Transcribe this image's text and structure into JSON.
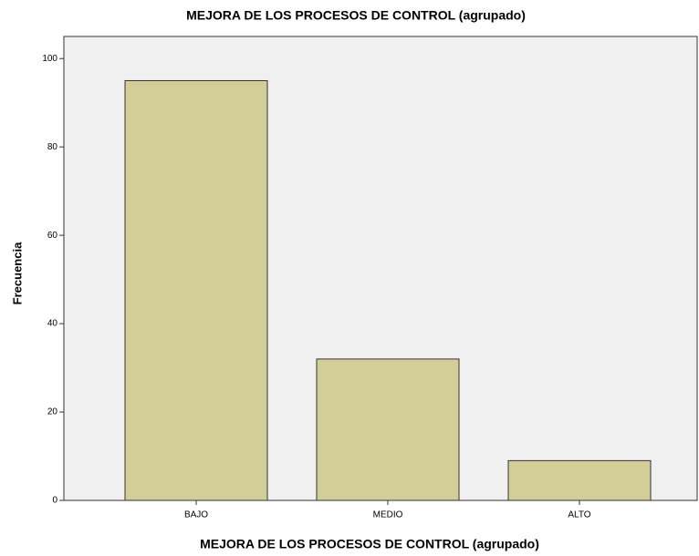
{
  "chart_data": {
    "type": "bar",
    "title": "MEJORA DE LOS PROCESOS DE CONTROL (agrupado)",
    "x_label": "MEJORA DE LOS PROCESOS DE CONTROL (agrupado)",
    "y_label": "Frecuencia",
    "categories": [
      "BAJO",
      "MEDIO",
      "ALTO"
    ],
    "values": [
      95,
      32,
      9
    ],
    "color": "#d3ce97",
    "ylim": [
      0,
      105
    ],
    "yticks": [
      0,
      20,
      40,
      60,
      80,
      100
    ],
    "grid": false
  }
}
